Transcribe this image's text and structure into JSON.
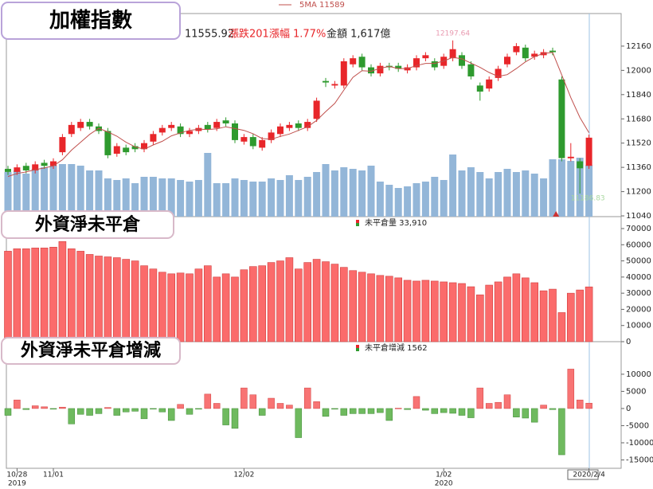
{
  "chart_data": [
    {
      "type": "candlestick",
      "title": "加權指數",
      "quote": [
        "11555.92",
        "漲跌201",
        "漲幅",
        "1.77%",
        "金額 1,617億"
      ],
      "categories": [
        null,
        "10/28",
        null,
        null,
        null,
        "11/01",
        null,
        null,
        null,
        null,
        null,
        null,
        null,
        null,
        null,
        null,
        null,
        null,
        null,
        null,
        null,
        null,
        null,
        null,
        null,
        null,
        "12/02",
        null,
        null,
        null,
        null,
        null,
        null,
        null,
        null,
        null,
        null,
        null,
        null,
        null,
        null,
        null,
        null,
        null,
        null,
        null,
        null,
        null,
        "1/02",
        null,
        null,
        null,
        null,
        null,
        null,
        null,
        null,
        null,
        null,
        null,
        null,
        null,
        null,
        null,
        "2020/2/4"
      ],
      "years": [
        null,
        "2019",
        null,
        null,
        null,
        null,
        null,
        null,
        null,
        null,
        null,
        null,
        null,
        null,
        null,
        null,
        null,
        null,
        null,
        null,
        null,
        null,
        null,
        null,
        null,
        null,
        null,
        null,
        null,
        null,
        null,
        null,
        null,
        null,
        null,
        null,
        null,
        null,
        null,
        null,
        null,
        null,
        null,
        null,
        null,
        null,
        null,
        null,
        "2020",
        null,
        null,
        null,
        null,
        null,
        null,
        null,
        null,
        null,
        null,
        null,
        null,
        null,
        null,
        null,
        null
      ],
      "open": [
        11350,
        11330,
        11370,
        11340,
        11390,
        11370,
        11460,
        11580,
        11620,
        11660,
        11630,
        11600,
        11450,
        11490,
        11500,
        11480,
        11530,
        11590,
        11620,
        11630,
        11580,
        11600,
        11640,
        11620,
        11670,
        11650,
        11530,
        11560,
        11490,
        11540,
        11580,
        11620,
        11650,
        11620,
        11680,
        11930,
        11900,
        11900,
        12040,
        12090,
        12020,
        11980,
        12030,
        12030,
        12000,
        12020,
        12080,
        12060,
        12030,
        12080,
        12100,
        12040,
        11900,
        11880,
        11950,
        12040,
        12120,
        12150,
        12090,
        12100,
        12130,
        11940,
        11420,
        11400,
        11370
      ],
      "high": [
        11370,
        11380,
        11390,
        11400,
        11410,
        11420,
        11580,
        11660,
        11680,
        11680,
        11650,
        11620,
        11520,
        11510,
        11520,
        11540,
        11600,
        11640,
        11660,
        11650,
        11620,
        11640,
        11660,
        11680,
        11690,
        11670,
        11580,
        11580,
        11560,
        11610,
        11650,
        11660,
        11670,
        11680,
        11820,
        11950,
        11930,
        12080,
        12100,
        12110,
        12040,
        12050,
        12050,
        12050,
        12040,
        12100,
        12120,
        12080,
        12110,
        12197.64,
        12120,
        12060,
        11920,
        11960,
        12030,
        12110,
        12180,
        12170,
        12130,
        12140,
        12150,
        11960,
        11520,
        11420,
        11576
      ],
      "low": [
        11310,
        11310,
        11320,
        11320,
        11350,
        11350,
        11440,
        11560,
        11600,
        11610,
        11580,
        11420,
        11430,
        11440,
        11460,
        11460,
        11510,
        11570,
        11600,
        11560,
        11560,
        11580,
        11590,
        11600,
        11630,
        11520,
        11510,
        11480,
        11470,
        11520,
        11560,
        11600,
        11600,
        11600,
        11660,
        11890,
        11880,
        11880,
        12020,
        12000,
        11960,
        11960,
        12000,
        11990,
        11980,
        12000,
        12060,
        12000,
        12010,
        12060,
        12010,
        11940,
        11800,
        11860,
        11930,
        12020,
        12100,
        12060,
        12070,
        12080,
        12100,
        11400,
        11400,
        11186.83,
        11350
      ],
      "close": [
        11330,
        11360,
        11340,
        11380,
        11370,
        11400,
        11560,
        11640,
        11660,
        11630,
        11600,
        11440,
        11500,
        11460,
        11480,
        11520,
        11580,
        11620,
        11640,
        11580,
        11600,
        11620,
        11610,
        11660,
        11650,
        11540,
        11560,
        11500,
        11540,
        11590,
        11630,
        11640,
        11620,
        11660,
        11800,
        11920,
        11910,
        12060,
        12080,
        12020,
        11980,
        12030,
        12020,
        12010,
        12020,
        12080,
        12100,
        12020,
        12090,
        12140,
        12030,
        11960,
        11860,
        11940,
        12010,
        12090,
        12160,
        12080,
        12110,
        12120,
        12120,
        11421,
        11430,
        11354,
        11556
      ],
      "up_color": "#e8262a",
      "down_color": "#2e9a2e",
      "ma5": {
        "name": "5MA",
        "legend": "5MA 11589",
        "color": "#c0504d",
        "values": [
          11300,
          11320,
          11330,
          11345,
          11356,
          11370,
          11410,
          11474,
          11526,
          11578,
          11618,
          11594,
          11566,
          11526,
          11496,
          11480,
          11508,
          11532,
          11568,
          11588,
          11604,
          11612,
          11610,
          11614,
          11628,
          11616,
          11604,
          11582,
          11550,
          11546,
          11564,
          11580,
          11604,
          11628,
          11670,
          11728,
          11782,
          11870,
          11954,
          11998,
          11994,
          12014,
          12026,
          12012,
          12012,
          12032,
          12046,
          12046,
          12062,
          12086,
          12076,
          12048,
          12020,
          11986,
          11960,
          11972,
          12012,
          12056,
          12090,
          12112,
          12118,
          11970,
          11820,
          11689,
          11589
        ]
      },
      "volume": {
        "color": "#93b6d8",
        "values": [
          1400,
          1450,
          1350,
          1500,
          1550,
          1600,
          1650,
          1650,
          1600,
          1450,
          1450,
          1200,
          1150,
          1200,
          1050,
          1250,
          1250,
          1200,
          1200,
          1150,
          1100,
          1150,
          2000,
          1050,
          1050,
          1200,
          1150,
          1100,
          1100,
          1200,
          1150,
          1300,
          1150,
          1250,
          1400,
          1650,
          1450,
          1550,
          1500,
          1450,
          1600,
          1100,
          1000,
          900,
          950,
          1050,
          1100,
          1250,
          1150,
          1950,
          1450,
          1550,
          1400,
          1200,
          1400,
          1500,
          1400,
          1450,
          1350,
          1200,
          1800,
          1800,
          1750,
          1850,
          1617
        ]
      },
      "annotations": [
        "12197.64",
        "11186.83"
      ],
      "ylim": [
        11035,
        12375
      ],
      "yticks": [
        11040,
        11200,
        11360,
        11520,
        11680,
        11840,
        12000,
        12160
      ]
    },
    {
      "type": "bar",
      "title": "外資淨未平倉",
      "legend": "未平倉量 33,910",
      "color": "#fb6b6b",
      "values": [
        56000,
        57500,
        57500,
        58000,
        58000,
        58500,
        62000,
        57500,
        56000,
        54000,
        53000,
        52500,
        52000,
        51000,
        50000,
        47000,
        45000,
        43000,
        42000,
        42500,
        42000,
        45000,
        47000,
        40000,
        42000,
        40000,
        44500,
        46500,
        47000,
        49000,
        50000,
        52000,
        45000,
        49000,
        51000,
        49500,
        48000,
        46000,
        44000,
        43000,
        42000,
        41000,
        40500,
        39500,
        38000,
        37500,
        38000,
        37500,
        37000,
        36500,
        36000,
        34000,
        29000,
        35000,
        37000,
        40000,
        42000,
        39500,
        36500,
        31500,
        32500,
        18000,
        30000,
        32000,
        33910
      ],
      "ylim": [
        0,
        77400
      ],
      "yticks": [
        0,
        10000,
        20000,
        30000,
        40000,
        50000,
        60000,
        70000
      ]
    },
    {
      "type": "signbar",
      "title": "外資淨未平倉增減",
      "legend": "未平倉增減 1562",
      "up_color": "#f87474",
      "down_color": "#6fba5f",
      "values": [
        -2000,
        2500,
        -300,
        800,
        500,
        -200,
        400,
        -4500,
        -1700,
        -2000,
        -1500,
        300,
        -2000,
        -1000,
        -800,
        -3000,
        -100,
        -1000,
        -3500,
        1200,
        -1700,
        -200,
        4200,
        1500,
        -4800,
        -5800,
        6000,
        4000,
        -2000,
        3000,
        1500,
        1000,
        -8500,
        6000,
        2000,
        -2300,
        -200,
        -2000,
        -1500,
        -1500,
        -1500,
        -1200,
        -3500,
        100,
        -300,
        3500,
        -500,
        -1500,
        -1200,
        -1400,
        -2000,
        -2700,
        6000,
        1500,
        1800,
        4000,
        -2500,
        -2800,
        -4000,
        1000,
        -300,
        -13500,
        11500,
        2500,
        1562
      ],
      "ylim": [
        -17440,
        19500
      ],
      "yticks": [
        -15000,
        -10000,
        -5000,
        0,
        5000,
        10000
      ]
    }
  ]
}
